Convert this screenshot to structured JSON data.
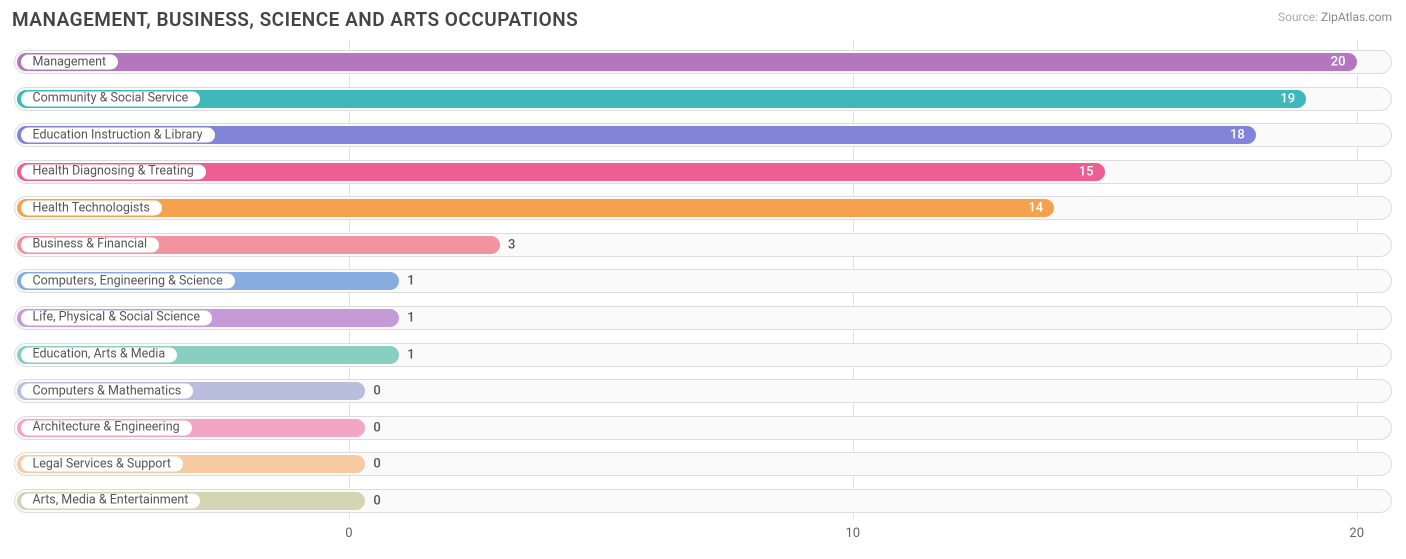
{
  "title": "MANAGEMENT, BUSINESS, SCIENCE AND ARTS OCCUPATIONS",
  "source_label": "Source:",
  "source_value": "ZipAtlas.com",
  "chart": {
    "type": "bar",
    "orientation": "horizontal",
    "background_color": "#ffffff",
    "track_bg": "#fafafa",
    "track_border": "#dcdcdc",
    "grid_color": "#e2e2e2",
    "label_color": "#555555",
    "title_fontsize": 19,
    "label_fontsize": 12.5,
    "value_fontsize": 13,
    "axis_fontsize": 13,
    "x_origin_pct": 24.3,
    "x_max": 20.7,
    "x_ticks": [
      0,
      10,
      20
    ],
    "bar_inner_min_pct": 25.5,
    "bars": [
      {
        "label": "Management",
        "value": 20,
        "color": "#b576c0"
      },
      {
        "label": "Community & Social Service",
        "value": 19,
        "color": "#3fb8bb"
      },
      {
        "label": "Education Instruction & Library",
        "value": 18,
        "color": "#8184d8"
      },
      {
        "label": "Health Diagnosing & Treating",
        "value": 15,
        "color": "#ed5e95"
      },
      {
        "label": "Health Technologists",
        "value": 14,
        "color": "#f5a14e"
      },
      {
        "label": "Business & Financial",
        "value": 3,
        "color": "#f194a0"
      },
      {
        "label": "Computers, Engineering & Science",
        "value": 1,
        "color": "#86ace0"
      },
      {
        "label": "Life, Physical & Social Science",
        "value": 1,
        "color": "#c49bd6"
      },
      {
        "label": "Education, Arts & Media",
        "value": 1,
        "color": "#88cfc0"
      },
      {
        "label": "Computers & Mathematics",
        "value": 0,
        "color": "#b9bedc"
      },
      {
        "label": "Architecture & Engineering",
        "value": 0,
        "color": "#f2a5c5"
      },
      {
        "label": "Legal Services & Support",
        "value": 0,
        "color": "#f8caa0"
      },
      {
        "label": "Arts, Media & Entertainment",
        "value": 0,
        "color": "#d2d6b2"
      }
    ]
  }
}
